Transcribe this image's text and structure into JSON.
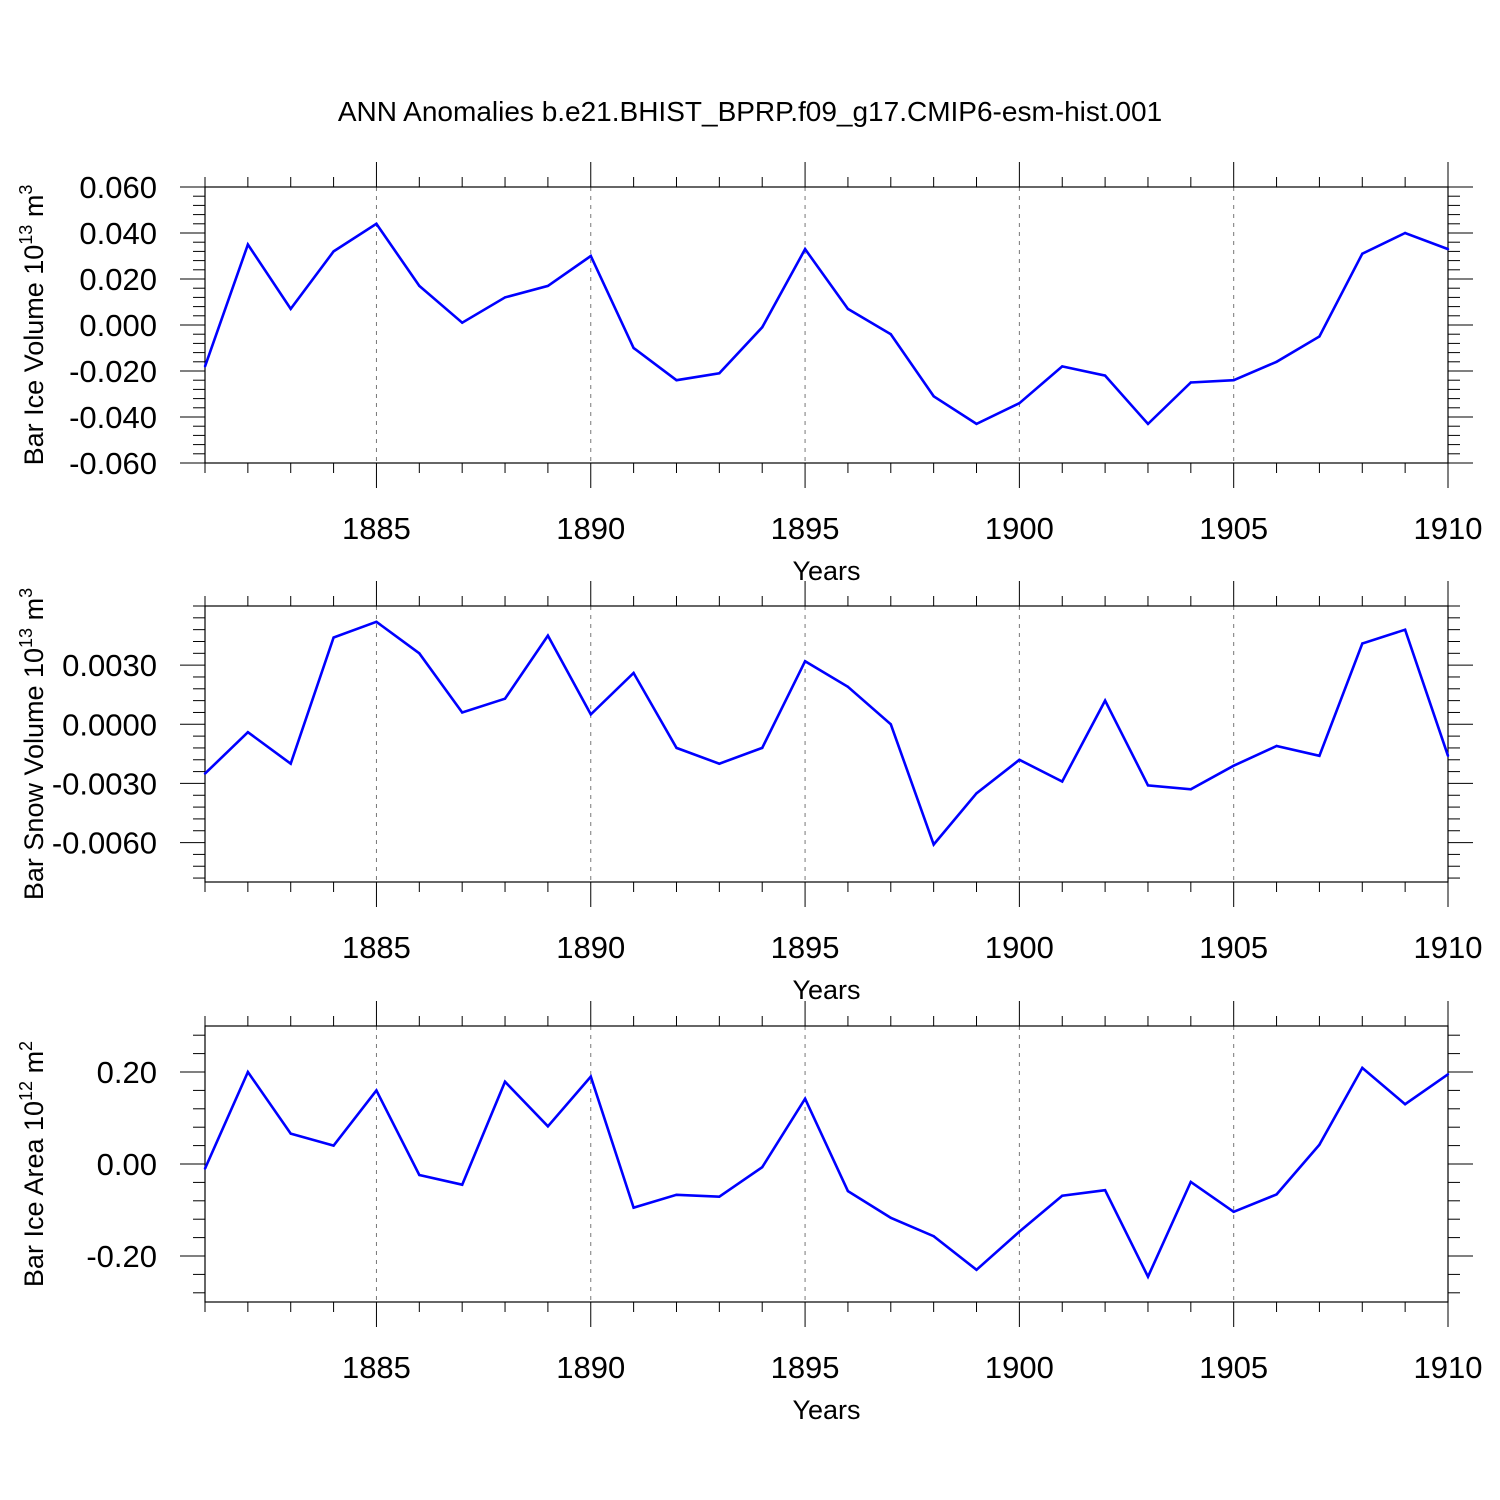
{
  "title": "ANN Anomalies b.e21.BHIST_BPRP.f09_g17.CMIP6-esm-hist.001",
  "line_color": "#0000ff",
  "chart_data": [
    {
      "type": "line",
      "ylabel_main": "Bar Ice Volume 10",
      "ylabel_exp": "13",
      "ylabel_unit": " m",
      "ylabel_unit_exp": "3",
      "xlabel": "Years",
      "xlim": [
        1881,
        1910
      ],
      "ylim": [
        -0.06,
        0.06
      ],
      "y_ticks": [
        0.06,
        0.04,
        0.02,
        0.0,
        -0.02,
        -0.04,
        -0.06
      ],
      "y_tick_labels": [
        "0.060",
        "0.040",
        "0.020",
        "0.000",
        "-0.020",
        "-0.040",
        "-0.060"
      ],
      "x_ticks": [
        1885,
        1890,
        1895,
        1900,
        1905,
        1910
      ],
      "x_tick_labels": [
        "1885",
        "1890",
        "1895",
        "1900",
        "1905",
        "1910"
      ],
      "x": [
        1881,
        1882,
        1883,
        1884,
        1885,
        1886,
        1887,
        1888,
        1889,
        1890,
        1891,
        1892,
        1893,
        1894,
        1895,
        1896,
        1897,
        1898,
        1899,
        1900,
        1901,
        1902,
        1903,
        1904,
        1905,
        1906,
        1907,
        1908,
        1909,
        1910
      ],
      "values": [
        -0.018,
        0.035,
        0.007,
        0.032,
        0.044,
        0.017,
        0.001,
        0.012,
        0.017,
        0.03,
        -0.01,
        -0.024,
        -0.021,
        -0.001,
        0.033,
        0.007,
        -0.004,
        -0.031,
        -0.043,
        -0.034,
        -0.018,
        -0.022,
        -0.043,
        -0.025,
        -0.024,
        -0.016,
        -0.005,
        0.031,
        0.04,
        0.033
      ]
    },
    {
      "type": "line",
      "ylabel_main": "Bar Snow Volume 10",
      "ylabel_exp": "13",
      "ylabel_unit": " m",
      "ylabel_unit_exp": "3",
      "xlabel": "Years",
      "xlim": [
        1881,
        1910
      ],
      "ylim": [
        -0.008,
        0.006
      ],
      "y_ticks": [
        0.003,
        0.0,
        -0.003,
        -0.006
      ],
      "y_tick_labels": [
        "0.0030",
        "0.0000",
        "-0.0030",
        "-0.0060"
      ],
      "x_ticks": [
        1885,
        1890,
        1895,
        1900,
        1905,
        1910
      ],
      "x_tick_labels": [
        "1885",
        "1890",
        "1895",
        "1900",
        "1905",
        "1910"
      ],
      "x": [
        1881,
        1882,
        1883,
        1884,
        1885,
        1886,
        1887,
        1888,
        1889,
        1890,
        1891,
        1892,
        1893,
        1894,
        1895,
        1896,
        1897,
        1898,
        1899,
        1900,
        1901,
        1902,
        1903,
        1904,
        1905,
        1906,
        1907,
        1908,
        1909,
        1910
      ],
      "values": [
        -0.0025,
        -0.0004,
        -0.002,
        0.0044,
        0.0052,
        0.0036,
        0.0006,
        0.0013,
        0.0045,
        0.0005,
        0.0026,
        -0.0012,
        -0.002,
        -0.0012,
        0.0032,
        0.0019,
        0.0,
        -0.0061,
        -0.0035,
        -0.0018,
        -0.0029,
        0.0012,
        -0.0031,
        -0.0033,
        -0.0021,
        -0.0011,
        -0.0016,
        0.0041,
        0.0048,
        -0.0016
      ]
    },
    {
      "type": "line",
      "ylabel_main": "Bar Ice Area 10",
      "ylabel_exp": "12",
      "ylabel_unit": " m",
      "ylabel_unit_exp": "2",
      "xlabel": "Years",
      "xlim": [
        1881,
        1910
      ],
      "ylim": [
        -0.3,
        0.3
      ],
      "y_ticks": [
        0.2,
        0.0,
        -0.2
      ],
      "y_tick_labels": [
        "0.20",
        "0.00",
        "-0.20"
      ],
      "x_ticks": [
        1885,
        1890,
        1895,
        1900,
        1905,
        1910
      ],
      "x_tick_labels": [
        "1885",
        "1890",
        "1895",
        "1900",
        "1905",
        "1910"
      ],
      "x": [
        1881,
        1882,
        1883,
        1884,
        1885,
        1886,
        1887,
        1888,
        1889,
        1890,
        1891,
        1892,
        1893,
        1894,
        1895,
        1896,
        1897,
        1898,
        1899,
        1900,
        1901,
        1902,
        1903,
        1904,
        1905,
        1906,
        1907,
        1908,
        1909,
        1910
      ],
      "values": [
        -0.01,
        0.2,
        0.066,
        0.04,
        0.16,
        -0.024,
        -0.045,
        0.179,
        0.082,
        0.19,
        -0.095,
        -0.067,
        -0.071,
        -0.007,
        0.142,
        -0.059,
        -0.117,
        -0.157,
        -0.23,
        -0.147,
        -0.069,
        -0.057,
        -0.245,
        -0.039,
        -0.104,
        -0.066,
        0.042,
        0.209,
        0.13,
        0.195
      ]
    }
  ]
}
